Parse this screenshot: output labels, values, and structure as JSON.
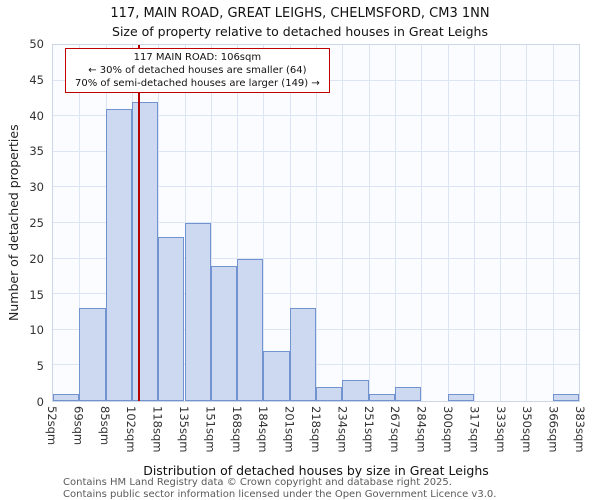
{
  "chart_data": {
    "type": "bar",
    "title": "117, MAIN ROAD, GREAT LEIGHS, CHELMSFORD, CM3 1NN",
    "subtitle": "Size of property relative to detached houses in Great Leighs",
    "xlabel": "Distribution of detached houses by size in Great Leighs",
    "ylabel": "Number of detached properties",
    "x_tick_labels": [
      "52sqm",
      "69sqm",
      "85sqm",
      "102sqm",
      "118sqm",
      "135sqm",
      "151sqm",
      "168sqm",
      "184sqm",
      "201sqm",
      "218sqm",
      "234sqm",
      "251sqm",
      "267sqm",
      "284sqm",
      "300sqm",
      "317sqm",
      "333sqm",
      "350sqm",
      "366sqm",
      "383sqm"
    ],
    "bin_edges_sqm": [
      52,
      69,
      85,
      102,
      118,
      135,
      151,
      168,
      184,
      201,
      218,
      234,
      251,
      267,
      284,
      300,
      317,
      333,
      350,
      366,
      383
    ],
    "values": [
      1,
      13,
      41,
      42,
      23,
      25,
      19,
      20,
      7,
      13,
      2,
      3,
      1,
      2,
      0,
      1,
      0,
      0,
      0,
      1
    ],
    "ylim": [
      0,
      50
    ],
    "y_ticks": [
      0,
      5,
      10,
      15,
      20,
      25,
      30,
      35,
      40,
      45,
      50
    ],
    "x_range_sqm": [
      52,
      383
    ],
    "marker_value_sqm": 106,
    "grid": true,
    "legend": "none",
    "colors": {
      "bar_fill": "#cdd9f0",
      "bar_edge": "#7193cf",
      "marker_line": "#b40000",
      "grid": "#dde5f4",
      "annotation_border": "#c00000"
    }
  },
  "annotation": {
    "line1": "117 MAIN ROAD: 106sqm",
    "line2": "← 30% of detached houses are smaller (64)",
    "line3": "70% of semi-detached houses are larger (149) →"
  },
  "footer": {
    "line1": "Contains HM Land Registry data © Crown copyright and database right 2025.",
    "line2": "Contains public sector information licensed under the Open Government Licence v3.0."
  }
}
